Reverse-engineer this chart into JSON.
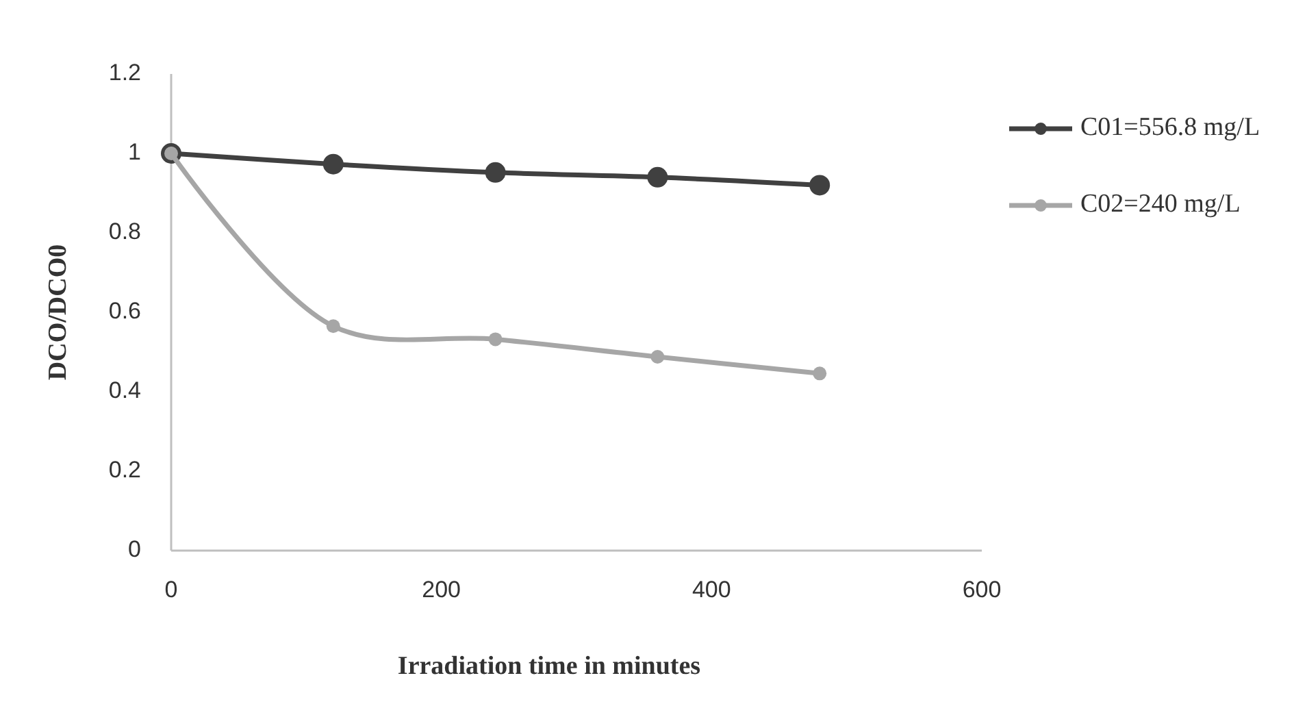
{
  "chart_data": {
    "type": "line",
    "xlabel": "Irradiation time in minutes",
    "ylabel": "DCO/DCO0",
    "x": [
      0,
      120,
      240,
      360,
      480
    ],
    "series": [
      {
        "name": "C01=556.8 mg/L",
        "color": "#404040",
        "values": [
          1,
          0.973,
          0.952,
          0.94,
          0.92
        ]
      },
      {
        "name": "C02=240 mg/L",
        "color": "#a6a6a6",
        "values": [
          1,
          0.565,
          0.532,
          0.488,
          0.446
        ]
      }
    ],
    "xlim": [
      0,
      600
    ],
    "xticks": [
      0,
      200,
      400,
      600
    ],
    "ylim": [
      0,
      1.2
    ],
    "yticks": [
      0,
      0.2,
      0.4,
      0.6,
      0.8,
      1,
      1.2
    ],
    "grid": false,
    "legend": "right",
    "marker": "circle",
    "line_style": "solid"
  }
}
